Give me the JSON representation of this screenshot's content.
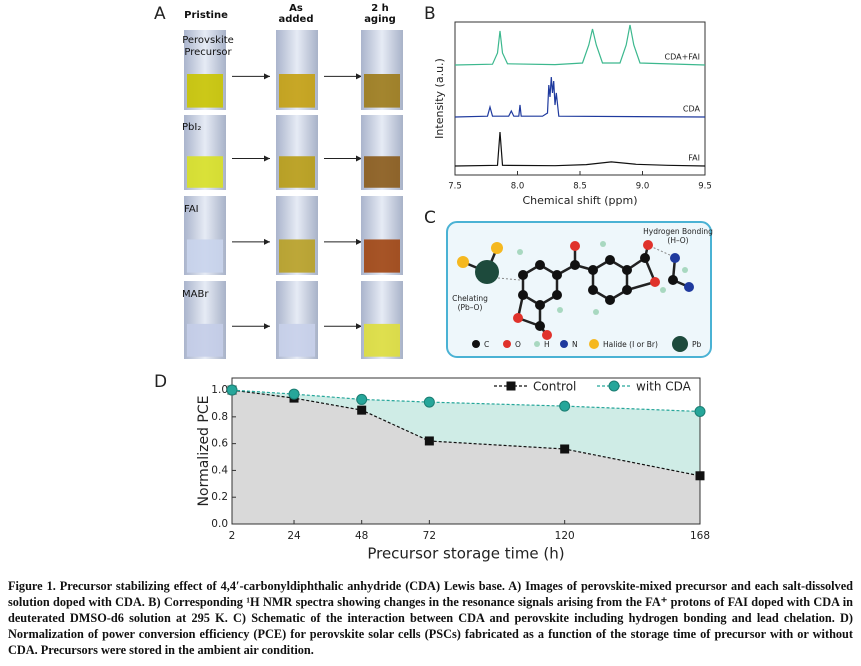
{
  "panel_a": {
    "label": "A",
    "columns": [
      "Pristine",
      "As added",
      "2 h aging"
    ],
    "rows": [
      "Perovskite Precursor",
      "PbI₂",
      "FAI",
      "MABr"
    ]
  },
  "chart_data": [
    {
      "type": "line",
      "label": "B",
      "x_label": "Chemical shift (ppm)",
      "y_label": "Intensity (a.u.)",
      "xlim": [
        7.5,
        9.5
      ],
      "xticks": [
        7.5,
        {
          "value": 8,
          "label": "8.0"
        },
        8.5,
        {
          "value": 9,
          "label": "9.0"
        },
        9.5
      ],
      "series": [
        {
          "name": "CDA+FAI",
          "color": "#3cb88e",
          "x": [
            7.5,
            7.8,
            7.84,
            7.86,
            7.88,
            7.92,
            8.3,
            8.52,
            8.57,
            8.6,
            8.63,
            8.68,
            8.82,
            8.87,
            8.9,
            8.93,
            8.98,
            9.5
          ],
          "values": [
            0,
            0.02,
            0.3,
            0.85,
            0.3,
            0.03,
            0.01,
            0.05,
            0.5,
            0.9,
            0.5,
            0.05,
            0.05,
            0.5,
            1,
            0.5,
            0.05,
            0
          ]
        },
        {
          "name": "CDA",
          "color": "#1f3a9e",
          "x": [
            7.5,
            7.76,
            7.78,
            7.8,
            7.93,
            7.95,
            7.97,
            8.01,
            8.02,
            8.03,
            8.2,
            8.24,
            8.25,
            8.26,
            8.27,
            8.28,
            8.29,
            8.3,
            8.31,
            8.33,
            9.5
          ],
          "values": [
            0,
            0.02,
            0.25,
            0.02,
            0.02,
            0.15,
            0.02,
            0.02,
            0.3,
            0.02,
            0.02,
            0.1,
            0.8,
            0.5,
            1,
            0.6,
            0.9,
            0.3,
            0.6,
            0.02,
            0
          ]
        },
        {
          "name": "FAI",
          "color": "#111111",
          "x": [
            7.5,
            7.84,
            7.86,
            7.88,
            8.3,
            8.55,
            8.75,
            8.95,
            9.2,
            9.5
          ],
          "values": [
            0,
            0.02,
            1,
            0.02,
            0.01,
            0.04,
            0.12,
            0.05,
            0.02,
            0
          ]
        }
      ]
    },
    {
      "type": "area",
      "label": "D",
      "x_label": "Precursor storage time (h)",
      "y_label": "Normalized PCE",
      "x": [
        2,
        24,
        48,
        72,
        120,
        168
      ],
      "xlim": [
        2,
        168
      ],
      "xticks": [
        2,
        24,
        48,
        72,
        120,
        168
      ],
      "ylim": [
        0,
        1.09
      ],
      "yticks": [
        {
          "value": 0,
          "label": "0.0"
        },
        0.2,
        0.4,
        0.6,
        0.8,
        {
          "value": 1,
          "label": "1.0"
        }
      ],
      "series": [
        {
          "name": "Control",
          "color": "#111111",
          "fill": "#d9d9d9",
          "values": [
            1.0,
            0.94,
            0.85,
            0.62,
            0.56,
            0.36
          ]
        },
        {
          "name": "with CDA",
          "color": "#26a69a",
          "fill": "#cfece6",
          "values": [
            1.0,
            0.97,
            0.93,
            0.91,
            0.88,
            0.84
          ]
        }
      ]
    }
  ],
  "panel_c": {
    "label": "C",
    "hydrogen_bonding": {
      "title": "Hydrogen Bonding",
      "bond": "(H–O)"
    },
    "chelating": {
      "title": "Chelating",
      "bond": "(Pb–O)"
    },
    "legend": [
      "C",
      "O",
      "H",
      "N",
      "Halide (I or Br)",
      "Pb"
    ]
  },
  "caption": "Figure 1. Precursor stabilizing effect of 4,4′-carbonyldiphthalic anhydride (CDA) Lewis base. A) Images of perovskite-mixed precursor and each salt-dissolved solution doped with CDA. B) Corresponding ¹H NMR spectra showing changes in the resonance signals arising from the FA⁺ protons of FAI doped with CDA in deuterated DMSO-d6 solution at 295 K. C) Schematic of the interaction between CDA and perovskite including hydrogen bonding and lead chelation. D) Normalization of power conversion efficiency (PCE) for perovskite solar cells (PSCs) fabricated as a function of the storage time of precursor with or without CDA. Precursors were stored in the ambient air condition."
}
